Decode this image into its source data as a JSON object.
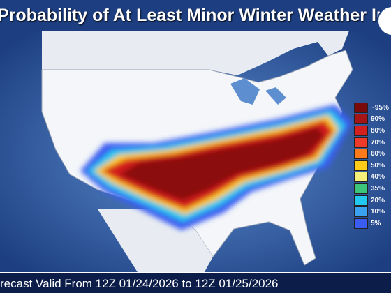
{
  "title": "Probability of At Least Minor Winter Weather Impacts",
  "footer": "recast Valid From 12Z 01/24/2026 to 12Z 01/25/2026",
  "legend": {
    "items": [
      {
        "label": "~95%",
        "color": "#7a0a0a"
      },
      {
        "label": "90%",
        "color": "#a51515"
      },
      {
        "label": "80%",
        "color": "#d41f1f"
      },
      {
        "label": "70%",
        "color": "#ee3a2a"
      },
      {
        "label": "60%",
        "color": "#ff7a1a"
      },
      {
        "label": "50%",
        "color": "#ffcc1a"
      },
      {
        "label": "40%",
        "color": "#f5f07a"
      },
      {
        "label": "35%",
        "color": "#3cc47a"
      },
      {
        "label": "20%",
        "color": "#22c8ee"
      },
      {
        "label": "10%",
        "color": "#3aa0f0"
      },
      {
        "label": "5%",
        "color": "#3a5cf0"
      }
    ]
  }
}
